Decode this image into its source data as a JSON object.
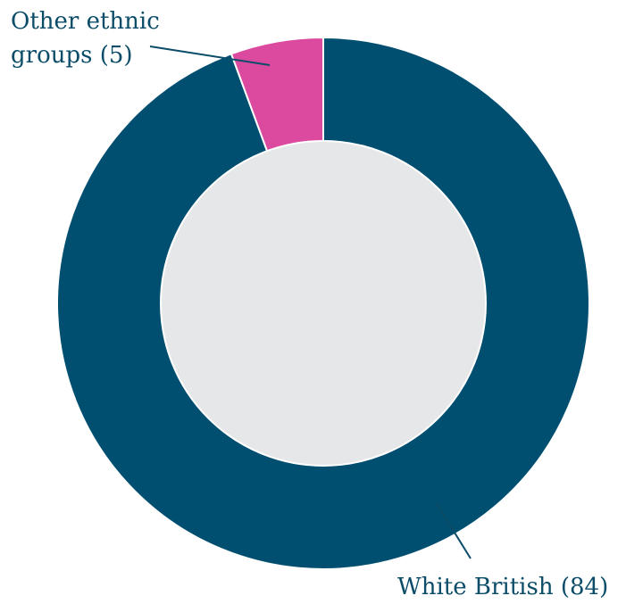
{
  "chart_data": {
    "type": "pie",
    "style": "donut",
    "title": "",
    "slices": [
      {
        "label": "White British (84)",
        "value": 84,
        "color": "#004f70"
      },
      {
        "label": "Other ethnic groups (5)",
        "value": 5,
        "color": "#dc4a9f"
      }
    ],
    "label_lines": {
      "white_british": [
        "White British (84)"
      ],
      "other": [
        "Other ethnic",
        "groups (5)"
      ]
    },
    "center_color": "#e6e7e8",
    "label_color": "#0b4c69"
  }
}
